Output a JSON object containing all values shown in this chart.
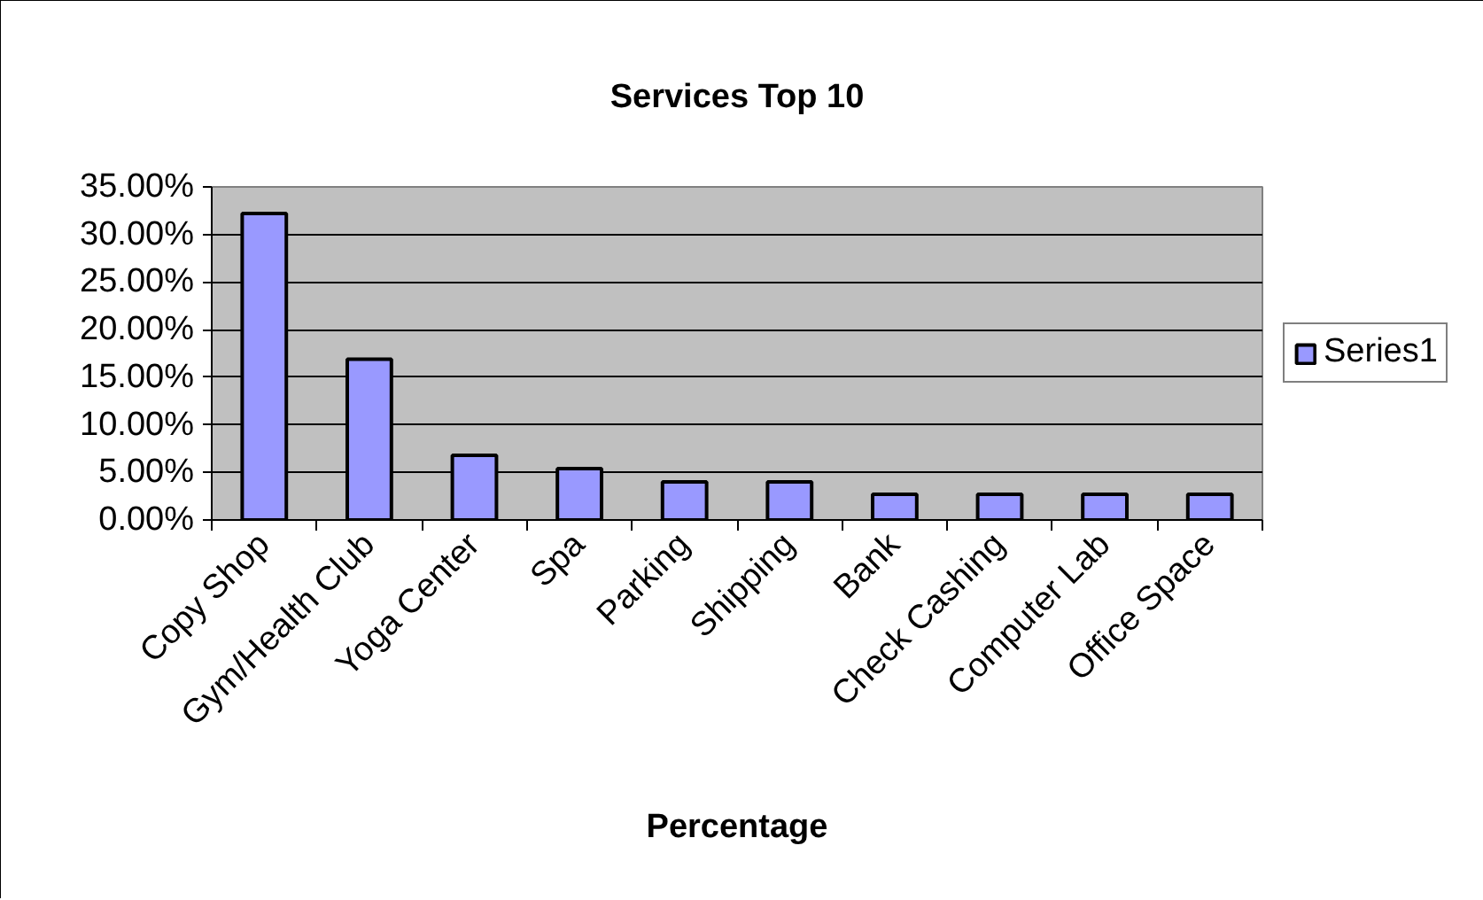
{
  "chart_data": {
    "type": "bar",
    "title": "Services Top 10",
    "xlabel": "Percentage",
    "categories": [
      "Copy Shop",
      "Gym/Health Club",
      "Yoga Center",
      "Spa",
      "Parking",
      "Shipping",
      "Bank",
      "Check Cashing",
      "Computer Lab",
      "Office Space"
    ],
    "series": [
      {
        "name": "Series1",
        "color": "#9999ff",
        "values": [
          32.2,
          16.9,
          6.8,
          5.4,
          4.0,
          4.0,
          2.7,
          2.7,
          2.7,
          2.7
        ]
      }
    ],
    "ylim": [
      0,
      35
    ],
    "yticks": [
      {
        "value": 0,
        "label": "0.00%"
      },
      {
        "value": 5,
        "label": "5.00%"
      },
      {
        "value": 10,
        "label": "10.00%"
      },
      {
        "value": 15,
        "label": "15.00%"
      },
      {
        "value": 20,
        "label": "20.00%"
      },
      {
        "value": 25,
        "label": "25.00%"
      },
      {
        "value": 30,
        "label": "30.00%"
      },
      {
        "value": 35,
        "label": "35.00%"
      }
    ],
    "grid": "y",
    "legend": "right"
  }
}
